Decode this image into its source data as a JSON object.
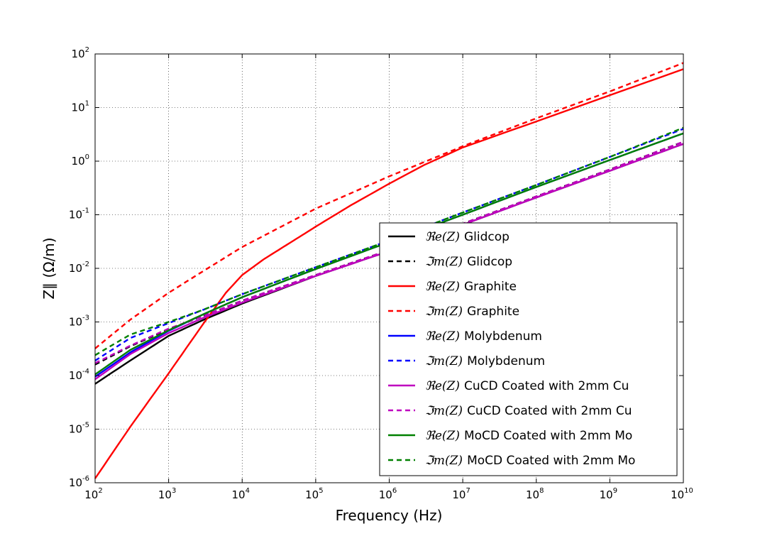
{
  "chart_data": {
    "type": "line",
    "xlabel": "Frequency (Hz)",
    "ylabel": "Z∥ (Ω/m)",
    "x_scale": "log",
    "y_scale": "log",
    "xlim": [
      100,
      10000000000
    ],
    "ylim": [
      1e-06,
      100
    ],
    "grid": true,
    "legend_position": "lower-right",
    "x_ticks": [
      {
        "base": "10",
        "exp": "2",
        "value": 100
      },
      {
        "base": "10",
        "exp": "3",
        "value": 1000
      },
      {
        "base": "10",
        "exp": "4",
        "value": 10000
      },
      {
        "base": "10",
        "exp": "5",
        "value": 100000
      },
      {
        "base": "10",
        "exp": "6",
        "value": 1000000
      },
      {
        "base": "10",
        "exp": "7",
        "value": 10000000
      },
      {
        "base": "10",
        "exp": "8",
        "value": 100000000
      },
      {
        "base": "10",
        "exp": "9",
        "value": 1000000000
      },
      {
        "base": "10",
        "exp": "10",
        "value": 10000000000
      }
    ],
    "y_ticks": [
      {
        "base": "10",
        "exp": "-6",
        "value": 1e-06
      },
      {
        "base": "10",
        "exp": "-5",
        "value": 1e-05
      },
      {
        "base": "10",
        "exp": "-4",
        "value": 0.0001
      },
      {
        "base": "10",
        "exp": "-3",
        "value": 0.001
      },
      {
        "base": "10",
        "exp": "-2",
        "value": 0.01
      },
      {
        "base": "10",
        "exp": "-1",
        "value": 0.1
      },
      {
        "base": "10",
        "exp": "0",
        "value": 1
      },
      {
        "base": "10",
        "exp": "1",
        "value": 10
      },
      {
        "base": "10",
        "exp": "2",
        "value": 100
      }
    ],
    "series": [
      {
        "name": "ℜe(Z) Glidcop",
        "math": "ℜe(Z)",
        "material": "Glidcop",
        "color": "#000000",
        "dashed": false,
        "x": [
          100,
          300,
          1000,
          3000,
          10000,
          100000,
          1000000,
          10000000,
          100000000,
          1000000000,
          10000000000
        ],
        "y": [
          7e-05,
          0.00019,
          0.00055,
          0.0011,
          0.0022,
          0.0072,
          0.021,
          0.065,
          0.21,
          0.66,
          2.1
        ]
      },
      {
        "name": "ℑm(Z) Glidcop",
        "math": "ℑm(Z)",
        "material": "Glidcop",
        "color": "#000000",
        "dashed": true,
        "x": [
          100,
          300,
          1000,
          3000,
          10000,
          100000,
          1000000,
          10000000,
          100000000,
          1000000000,
          10000000000
        ],
        "y": [
          0.00016,
          0.00035,
          0.00073,
          0.0013,
          0.0025,
          0.0075,
          0.022,
          0.068,
          0.22,
          0.7,
          2.3
        ]
      },
      {
        "name": "ℜe(Z) Graphite",
        "math": "ℜe(Z)",
        "material": "Graphite",
        "color": "#ff0000",
        "dashed": false,
        "x": [
          100,
          300,
          1000,
          3000,
          6000,
          10000,
          20000,
          50000,
          100000,
          300000,
          1000000,
          3000000,
          10000000,
          100000000,
          1000000000,
          10000000000
        ],
        "y": [
          1.2e-06,
          1.1e-05,
          0.00011,
          0.00095,
          0.0035,
          0.0075,
          0.015,
          0.033,
          0.06,
          0.15,
          0.38,
          0.85,
          1.8,
          5.5,
          17,
          52
        ]
      },
      {
        "name": "ℑm(Z) Graphite",
        "math": "ℑm(Z)",
        "material": "Graphite",
        "color": "#ff0000",
        "dashed": true,
        "x": [
          100,
          300,
          1000,
          3000,
          10000,
          100000,
          1000000,
          10000000,
          100000000,
          1000000000,
          10000000000
        ],
        "y": [
          0.00032,
          0.0011,
          0.0035,
          0.009,
          0.025,
          0.13,
          0.52,
          1.9,
          6.3,
          20,
          68
        ]
      },
      {
        "name": "ℜe(Z) Molybdenum",
        "math": "ℜe(Z)",
        "material": "Molybdenum",
        "color": "#0000ff",
        "dashed": false,
        "x": [
          100,
          300,
          1000,
          3000,
          10000,
          100000,
          1000000,
          10000000,
          100000000,
          1000000000,
          10000000000
        ],
        "y": [
          9.5e-05,
          0.00027,
          0.00068,
          0.0014,
          0.0029,
          0.0097,
          0.031,
          0.1,
          0.33,
          1.05,
          3.3
        ]
      },
      {
        "name": "ℑm(Z) Molybdenum",
        "math": "ℑm(Z)",
        "material": "Molybdenum",
        "color": "#0000ff",
        "dashed": true,
        "x": [
          100,
          300,
          1000,
          3000,
          10000,
          100000,
          1000000,
          10000000,
          100000000,
          1000000000,
          10000000000
        ],
        "y": [
          0.00019,
          0.0005,
          0.00095,
          0.0017,
          0.0033,
          0.0105,
          0.033,
          0.11,
          0.36,
          1.2,
          4.0
        ]
      },
      {
        "name": "ℜe(Z) CuCD Coated with 2mm Cu",
        "math": "ℜe(Z)",
        "material": "CuCD Coated with 2mm Cu",
        "color": "#bf00bf",
        "dashed": false,
        "x": [
          100,
          300,
          1000,
          3000,
          10000,
          100000,
          1000000,
          10000000,
          100000000,
          1000000000,
          10000000000
        ],
        "y": [
          8.5e-05,
          0.00025,
          0.00062,
          0.0012,
          0.0023,
          0.0072,
          0.021,
          0.065,
          0.21,
          0.66,
          2.1
        ]
      },
      {
        "name": "ℑm(Z) CuCD Coated with 2mm Cu",
        "math": "ℑm(Z)",
        "material": "CuCD Coated with 2mm Cu",
        "color": "#bf00bf",
        "dashed": true,
        "x": [
          100,
          300,
          1000,
          3000,
          10000,
          100000,
          1000000,
          10000000,
          100000000,
          1000000000,
          10000000000
        ],
        "y": [
          0.00017,
          0.00036,
          0.00075,
          0.0013,
          0.0025,
          0.0075,
          0.022,
          0.068,
          0.22,
          0.7,
          2.3
        ]
      },
      {
        "name": "ℜe(Z) MoCD Coated with 2mm Mo",
        "math": "ℜe(Z)",
        "material": "MoCD Coated with 2mm Mo",
        "color": "#008000",
        "dashed": false,
        "x": [
          100,
          300,
          1000,
          3000,
          10000,
          100000,
          1000000,
          10000000,
          100000000,
          1000000000,
          10000000000
        ],
        "y": [
          0.000105,
          0.0003,
          0.0007,
          0.0014,
          0.0029,
          0.0097,
          0.031,
          0.1,
          0.33,
          1.05,
          3.3
        ]
      },
      {
        "name": "ℑm(Z) MoCD Coated with 2mm Mo",
        "math": "ℑm(Z)",
        "material": "MoCD Coated with 2mm Mo",
        "color": "#008000",
        "dashed": true,
        "x": [
          100,
          300,
          1000,
          3000,
          10000,
          100000,
          1000000,
          10000000,
          100000000,
          1000000000,
          10000000000
        ],
        "y": [
          0.00024,
          0.00058,
          0.001,
          0.0017,
          0.0033,
          0.0105,
          0.033,
          0.11,
          0.36,
          1.2,
          4.2
        ]
      }
    ]
  }
}
